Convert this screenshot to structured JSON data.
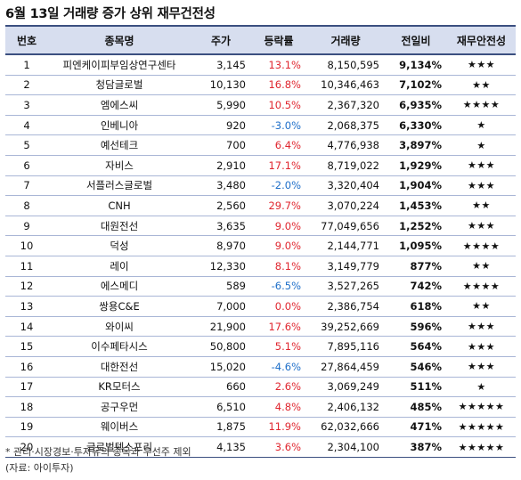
{
  "title": "6월 13일 거래량 증가 상위 재무건전성",
  "headers": [
    "번호",
    "종목명",
    "주가",
    "등락률",
    "거래량",
    "전일비",
    "재무안전성"
  ],
  "rows": [
    {
      "no": "1",
      "name": "피엔케이피부임상연구센타",
      "price": "3,145",
      "change": "13.1%",
      "dir": "up",
      "volume": "8,150,595",
      "ratio": "9,134%",
      "stars": "★★★"
    },
    {
      "no": "2",
      "name": "청담글로벌",
      "price": "10,130",
      "change": "16.8%",
      "dir": "up",
      "volume": "10,346,463",
      "ratio": "7,102%",
      "stars": "★★"
    },
    {
      "no": "3",
      "name": "엠에스씨",
      "price": "5,990",
      "change": "10.5%",
      "dir": "up",
      "volume": "2,367,320",
      "ratio": "6,935%",
      "stars": "★★★★"
    },
    {
      "no": "4",
      "name": "인베니아",
      "price": "920",
      "change": "-3.0%",
      "dir": "down",
      "volume": "2,068,375",
      "ratio": "6,330%",
      "stars": "★"
    },
    {
      "no": "5",
      "name": "예선테크",
      "price": "700",
      "change": "6.4%",
      "dir": "up",
      "volume": "4,776,938",
      "ratio": "3,897%",
      "stars": "★"
    },
    {
      "no": "6",
      "name": "자비스",
      "price": "2,910",
      "change": "17.1%",
      "dir": "up",
      "volume": "8,719,022",
      "ratio": "1,929%",
      "stars": "★★★"
    },
    {
      "no": "7",
      "name": "서플러스글로벌",
      "price": "3,480",
      "change": "-2.0%",
      "dir": "down",
      "volume": "3,320,404",
      "ratio": "1,904%",
      "stars": "★★★"
    },
    {
      "no": "8",
      "name": "CNH",
      "price": "2,560",
      "change": "29.7%",
      "dir": "up",
      "volume": "3,070,224",
      "ratio": "1,453%",
      "stars": "★★"
    },
    {
      "no": "9",
      "name": "대원전선",
      "price": "3,635",
      "change": "9.0%",
      "dir": "up",
      "volume": "77,049,656",
      "ratio": "1,252%",
      "stars": "★★★"
    },
    {
      "no": "10",
      "name": "덕성",
      "price": "8,970",
      "change": "9.0%",
      "dir": "up",
      "volume": "2,144,771",
      "ratio": "1,095%",
      "stars": "★★★★"
    },
    {
      "no": "11",
      "name": "레이",
      "price": "12,330",
      "change": "8.1%",
      "dir": "up",
      "volume": "3,149,779",
      "ratio": "877%",
      "stars": "★★"
    },
    {
      "no": "12",
      "name": "에스메디",
      "price": "589",
      "change": "-6.5%",
      "dir": "down",
      "volume": "3,527,265",
      "ratio": "742%",
      "stars": "★★★★"
    },
    {
      "no": "13",
      "name": "쌍용C&E",
      "price": "7,000",
      "change": "0.0%",
      "dir": "flat",
      "volume": "2,386,754",
      "ratio": "618%",
      "stars": "★★"
    },
    {
      "no": "14",
      "name": "와이씨",
      "price": "21,900",
      "change": "17.6%",
      "dir": "up",
      "volume": "39,252,669",
      "ratio": "596%",
      "stars": "★★★"
    },
    {
      "no": "15",
      "name": "이수페타시스",
      "price": "50,800",
      "change": "5.1%",
      "dir": "up",
      "volume": "7,895,116",
      "ratio": "564%",
      "stars": "★★★"
    },
    {
      "no": "16",
      "name": "대한전선",
      "price": "15,020",
      "change": "-4.6%",
      "dir": "down",
      "volume": "27,864,459",
      "ratio": "546%",
      "stars": "★★★"
    },
    {
      "no": "17",
      "name": "KR모터스",
      "price": "660",
      "change": "2.6%",
      "dir": "up",
      "volume": "3,069,249",
      "ratio": "511%",
      "stars": "★"
    },
    {
      "no": "18",
      "name": "공구우먼",
      "price": "6,510",
      "change": "4.8%",
      "dir": "up",
      "volume": "2,406,132",
      "ratio": "485%",
      "stars": "★★★★★"
    },
    {
      "no": "19",
      "name": "웨이버스",
      "price": "1,875",
      "change": "11.9%",
      "dir": "up",
      "volume": "62,032,666",
      "ratio": "471%",
      "stars": "★★★★★"
    },
    {
      "no": "20",
      "name": "글로벌텍스프리",
      "price": "4,135",
      "change": "3.6%",
      "dir": "up",
      "volume": "2,304,100",
      "ratio": "387%",
      "stars": "★★★★★"
    }
  ],
  "footnote": "* 관리·시장경보·투자유의 종목과 우선주 제외",
  "source": "(자료: 아이투자)"
}
